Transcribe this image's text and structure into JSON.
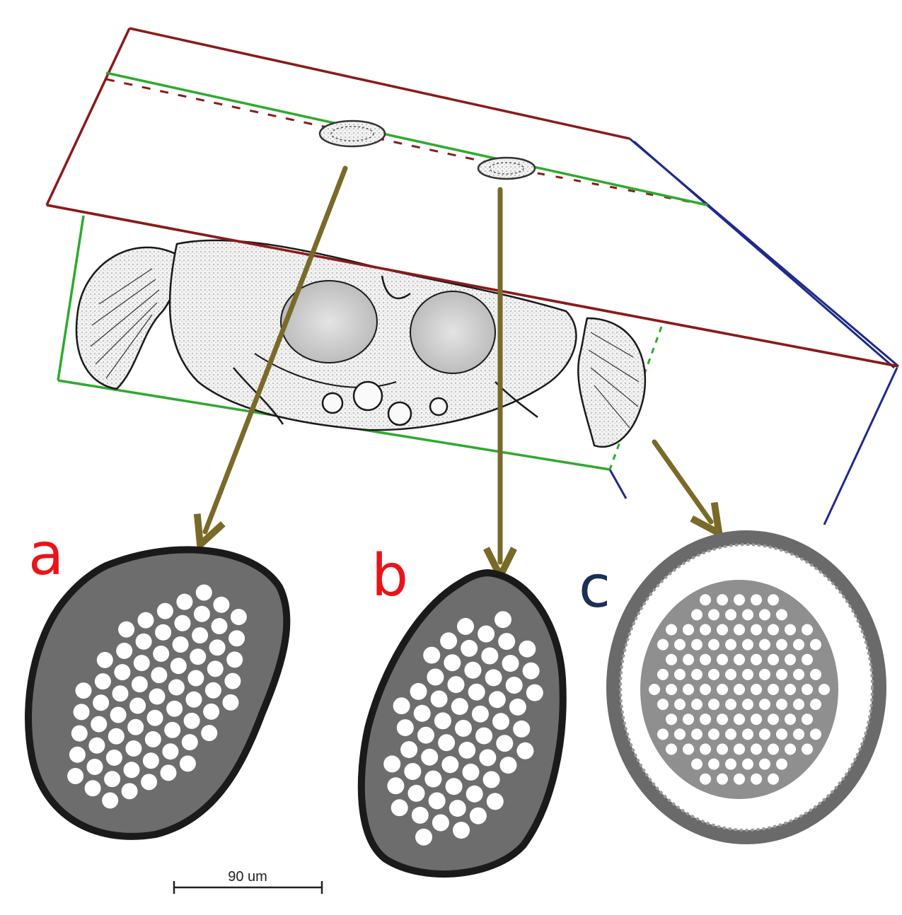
{
  "panels": [
    {
      "label": "a",
      "color": "#e8141a"
    },
    {
      "label": "b",
      "color": "#e8141a"
    },
    {
      "label": "c",
      "color": "#1c2f55"
    }
  ],
  "scale_bar": {
    "text": "90 um"
  },
  "colors": {
    "outer_frame": "#8b1a1a",
    "inner_frame": "#2eaa2e",
    "depth_edge": "#1f2a8a",
    "arrow": "#7a6a28"
  }
}
